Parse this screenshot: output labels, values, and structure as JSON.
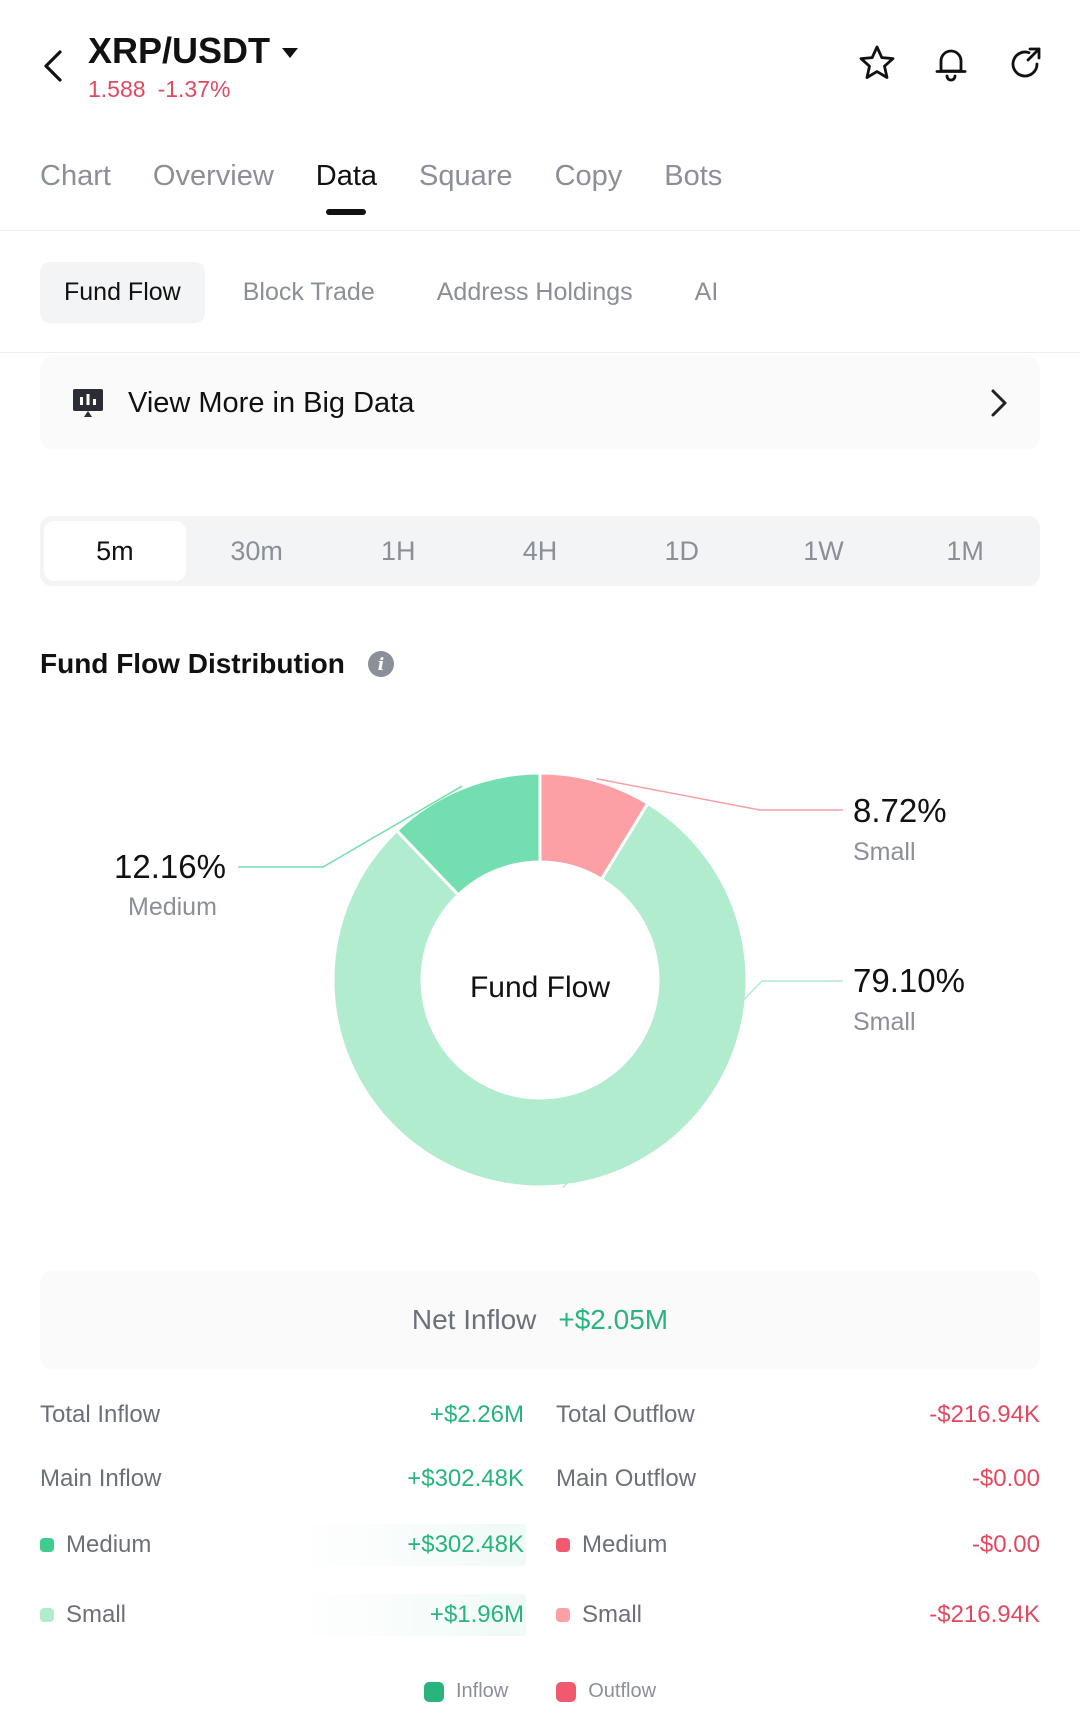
{
  "header": {
    "pair": "XRP/USDT",
    "price": "1.588",
    "change": "-1.37%",
    "icons": [
      "back-arrow-icon",
      "star-icon",
      "bell-icon",
      "share-icon"
    ]
  },
  "tabs": [
    {
      "label": "Chart"
    },
    {
      "label": "Overview"
    },
    {
      "label": "Data",
      "active": true
    },
    {
      "label": "Square"
    },
    {
      "label": "Copy"
    },
    {
      "label": "Bots"
    }
  ],
  "subtabs": [
    {
      "label": "Fund Flow",
      "active": true
    },
    {
      "label": "Block Trade"
    },
    {
      "label": "Address Holdings"
    },
    {
      "label": "AI"
    }
  ],
  "bigdata": {
    "label": "View More in Big Data"
  },
  "timeframes": [
    {
      "label": "5m",
      "active": true
    },
    {
      "label": "30m"
    },
    {
      "label": "1H"
    },
    {
      "label": "4H"
    },
    {
      "label": "1D"
    },
    {
      "label": "1W"
    },
    {
      "label": "1M"
    }
  ],
  "section": {
    "title": "Fund Flow Distribution"
  },
  "chart_data": {
    "type": "pie",
    "center_label": "Fund Flow",
    "slices": [
      {
        "name": "Small",
        "pct_label": "8.72%",
        "value": 8.72,
        "color": "#fca0a5",
        "flow": "outflow"
      },
      {
        "name": "Small",
        "pct_label": "79.10%",
        "value": 79.1,
        "color": "#b1ecce",
        "flow": "inflow"
      },
      {
        "name": "Medium",
        "pct_label": "12.16%",
        "value": 12.16,
        "color": "#73deaf",
        "flow": "inflow"
      }
    ]
  },
  "net": {
    "label": "Net Inflow",
    "value": "+$2.05M"
  },
  "inflow": {
    "total_label": "Total Inflow",
    "total_value": "+$2.26M",
    "main_label": "Main Inflow",
    "main_value": "+$302.48K",
    "medium_label": "Medium",
    "medium_value": "+$302.48K",
    "small_label": "Small",
    "small_value": "+$1.96M"
  },
  "outflow": {
    "total_label": "Total Outflow",
    "total_value": "-$216.94K",
    "main_label": "Main Outflow",
    "main_value": "-$0.00",
    "medium_label": "Medium",
    "medium_value": "-$0.00",
    "small_label": "Small",
    "small_value": "-$216.94K"
  },
  "legend": {
    "inflow": "Inflow",
    "outflow": "Outflow"
  },
  "colors": {
    "green": "#28b47c",
    "red": "#e0495f",
    "medium_in": "#3fcc8e",
    "small_in": "#b1ecce",
    "medium_out": "#f05a6e",
    "small_out": "#fca0a5"
  }
}
